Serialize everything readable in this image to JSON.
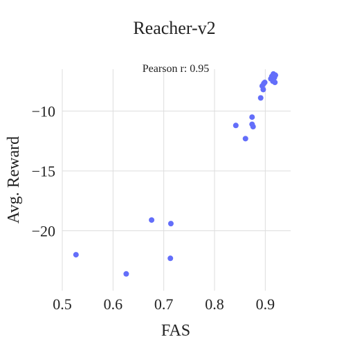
{
  "chart_data": {
    "type": "scatter",
    "title": "Reacher-v2",
    "annotation": "Pearson r: 0.95",
    "xlabel": "FAS",
    "ylabel": "Avg. Reward",
    "xlim": [
      0.5,
      0.95
    ],
    "ylim": [
      -25,
      -6.5
    ],
    "xticks": [
      0.5,
      0.6,
      0.7,
      0.8,
      0.9
    ],
    "xtick_labels": [
      "0.5",
      "0.6",
      "0.7",
      "0.8",
      "0.9"
    ],
    "yticks": [
      -10,
      -15,
      -20
    ],
    "ytick_labels": [
      "−10",
      "−15",
      "−20"
    ],
    "grid": true,
    "marker_color": "#636efa",
    "points": [
      {
        "x": 0.527,
        "y": -22.0
      },
      {
        "x": 0.626,
        "y": -23.6
      },
      {
        "x": 0.676,
        "y": -19.1
      },
      {
        "x": 0.714,
        "y": -19.4
      },
      {
        "x": 0.713,
        "y": -22.3
      },
      {
        "x": 0.842,
        "y": -11.2
      },
      {
        "x": 0.861,
        "y": -12.3
      },
      {
        "x": 0.874,
        "y": -10.5
      },
      {
        "x": 0.874,
        "y": -11.1
      },
      {
        "x": 0.876,
        "y": -11.3
      },
      {
        "x": 0.891,
        "y": -8.9
      },
      {
        "x": 0.894,
        "y": -7.9
      },
      {
        "x": 0.897,
        "y": -7.7
      },
      {
        "x": 0.896,
        "y": -8.2
      },
      {
        "x": 0.899,
        "y": -7.6
      },
      {
        "x": 0.911,
        "y": -7.3
      },
      {
        "x": 0.913,
        "y": -7.1
      },
      {
        "x": 0.916,
        "y": -6.9
      },
      {
        "x": 0.915,
        "y": -7.5
      },
      {
        "x": 0.918,
        "y": -7.2
      },
      {
        "x": 0.92,
        "y": -7.0
      },
      {
        "x": 0.919,
        "y": -7.6
      }
    ]
  }
}
